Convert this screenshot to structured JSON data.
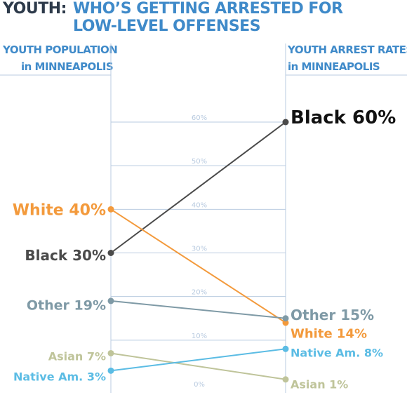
{
  "header": {
    "prefix": "YOUTH:",
    "title_line1": "WHO’S GETTING ARRESTED FOR",
    "title_line2": "LOW-LEVEL OFFENSES",
    "left_heading_line1": "YOUTH POPULATION",
    "left_heading_line2": "in MINNEAPOLIS",
    "right_heading_line1": "YOUTH ARREST RATES",
    "right_heading_line2": "in MINNEAPOLIS"
  },
  "chart_data": {
    "type": "line",
    "subtype": "slope",
    "x": [
      "YOUTH POPULATION in MINNEAPOLIS",
      "YOUTH ARREST RATES in MINNEAPOLIS"
    ],
    "ylim": [
      0,
      60
    ],
    "ytick_labels": [
      "0%",
      "10%",
      "20%",
      "30%",
      "40%",
      "50%",
      "60%"
    ],
    "yticks": [
      0,
      10,
      20,
      30,
      40,
      50,
      60
    ],
    "series": [
      {
        "name": "Black",
        "values": [
          30,
          60
        ],
        "color": "#4a4a4a",
        "left_label": "Black 30%",
        "right_label": "Black 60%"
      },
      {
        "name": "White",
        "values": [
          40,
          14
        ],
        "color": "#f39a3c",
        "left_label": "White 40%",
        "right_label": "White 14%"
      },
      {
        "name": "Other",
        "values": [
          19,
          15
        ],
        "color": "#7f9aa6",
        "left_label": "Other 19%",
        "right_label": "Other 15%"
      },
      {
        "name": "Asian",
        "values": [
          7,
          1
        ],
        "color": "#bfc49a",
        "left_label": "Asian 7%",
        "right_label": "Asian 1%"
      },
      {
        "name": "Native Am.",
        "values": [
          3,
          8
        ],
        "color": "#5bbce4",
        "left_label": "Native Am. 3%",
        "right_label": "Native Am. 8%"
      }
    ]
  }
}
